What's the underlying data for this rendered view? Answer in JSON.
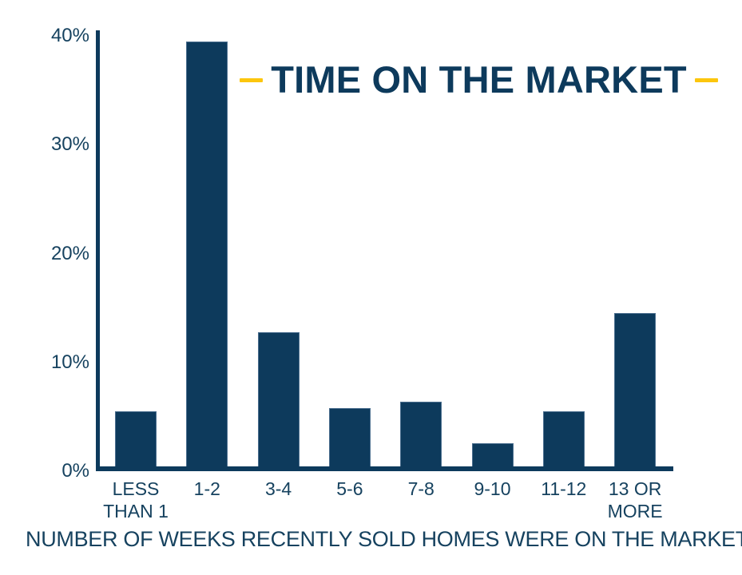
{
  "title": {
    "text": "TIME ON THE MARKET"
  },
  "colors": {
    "navy": "#0d3a5c",
    "text_navy": "#16425f",
    "yellow": "#fcc60d"
  },
  "caption": "NUMBER OF WEEKS RECENTLY SOLD HOMES WERE ON THE MARKET",
  "chart_data": {
    "type": "bar",
    "title": "TIME ON THE MARKET",
    "categories": [
      "LESS THAN 1",
      "1-2",
      "3-4",
      "5-6",
      "7-8",
      "9-10",
      "11-12",
      "13 OR MORE"
    ],
    "values": [
      5.5,
      39.5,
      12.8,
      5.8,
      6.4,
      2.6,
      5.5,
      14.5
    ],
    "unit": "%",
    "xlabel": "NUMBER OF WEEKS RECENTLY SOLD HOMES WERE ON THE MARKET",
    "ylabel": "",
    "ylim": [
      0,
      40
    ],
    "yticks": [
      {
        "value": 0,
        "label": "0%"
      },
      {
        "value": 10,
        "label": "10%"
      },
      {
        "value": 20,
        "label": "20%"
      },
      {
        "value": 30,
        "label": "30%"
      },
      {
        "value": 40,
        "label": "40%"
      }
    ],
    "grid": false,
    "legend": "none",
    "bar_color": "#0d3a5c",
    "accent_color": "#fcc60d"
  }
}
